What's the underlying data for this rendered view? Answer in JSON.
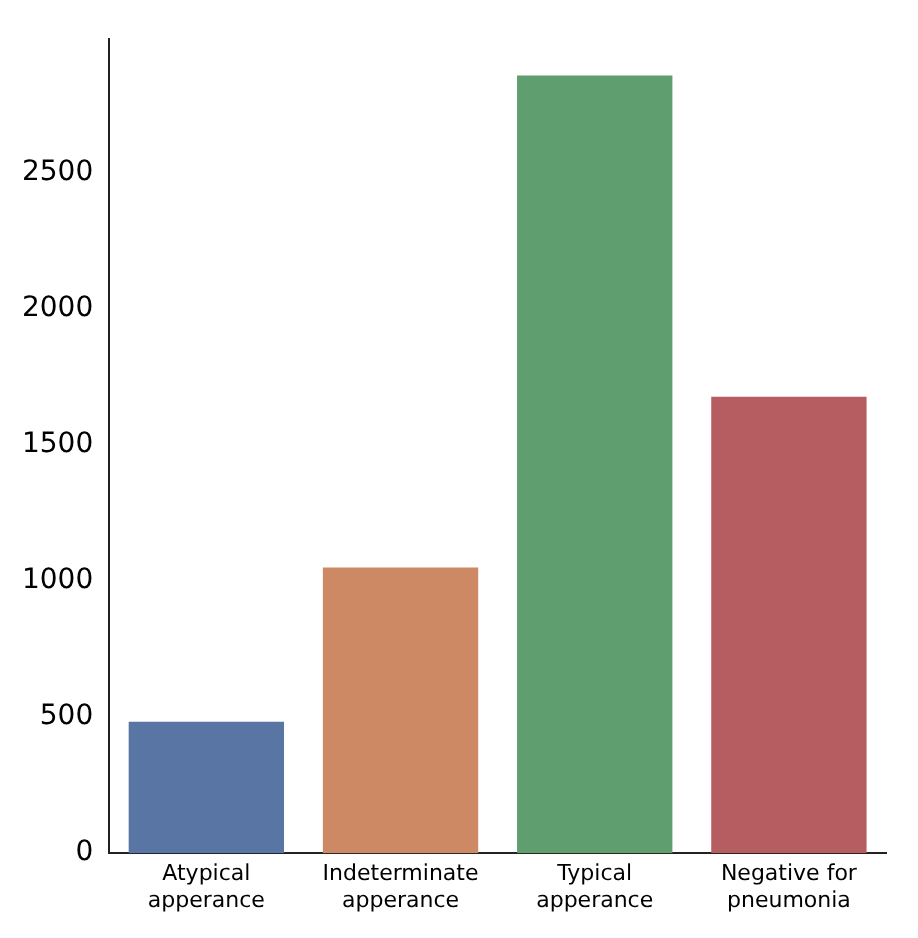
{
  "chart_data": {
    "type": "bar",
    "categories": [
      "Atypical apperance",
      "Indeterminate apperance",
      "Typical apperance",
      "Negative for pneumonia"
    ],
    "values": [
      483,
      1049,
      2855,
      1676
    ],
    "colors": [
      "#5975a4",
      "#cc8963",
      "#5f9e6e",
      "#b55d60"
    ],
    "ylim": [
      0,
      2990
    ],
    "yticks": [
      0,
      500,
      1000,
      1500,
      2000,
      2500
    ],
    "grid": false,
    "legend": false
  }
}
